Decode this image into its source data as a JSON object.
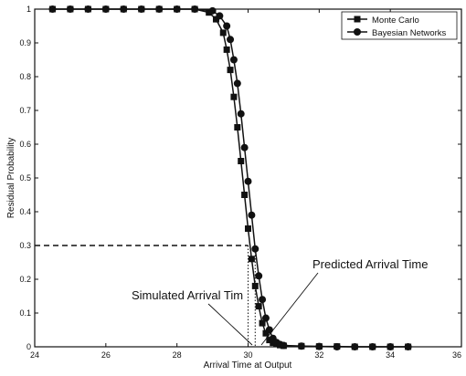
{
  "chart_data": {
    "type": "line",
    "xlabel": "Arrival Time at Output",
    "ylabel": "Residual Probability",
    "xlim": [
      24,
      36
    ],
    "ylim": [
      0,
      1
    ],
    "xticks": [
      "24",
      "26",
      "28",
      "30",
      "32",
      "34",
      "36"
    ],
    "yticks": [
      "0",
      "0.1",
      "0.2",
      "0.3",
      "0.4",
      "0.5",
      "0.6",
      "0.7",
      "0.8",
      "0.9",
      "1"
    ],
    "grid": false,
    "legend_position": "top-right",
    "series": [
      {
        "name": "Monte Carlo",
        "marker": "square",
        "x": [
          24.5,
          25.0,
          25.5,
          26.0,
          26.5,
          27.0,
          27.5,
          28.0,
          28.5,
          28.9,
          29.1,
          29.3,
          29.4,
          29.5,
          29.6,
          29.7,
          29.8,
          29.9,
          30.0,
          30.1,
          30.2,
          30.3,
          30.4,
          30.5,
          30.6,
          30.7,
          30.8,
          30.9,
          31.0,
          31.5,
          32.0,
          32.5,
          33.0,
          33.5,
          34.0,
          34.5
        ],
        "y": [
          1.0,
          1.0,
          1.0,
          1.0,
          1.0,
          1.0,
          1.0,
          1.0,
          1.0,
          0.99,
          0.97,
          0.93,
          0.88,
          0.82,
          0.74,
          0.65,
          0.55,
          0.45,
          0.35,
          0.26,
          0.18,
          0.12,
          0.07,
          0.04,
          0.02,
          0.012,
          0.008,
          0.005,
          0.003,
          0.002,
          0.001,
          0.001,
          0.0,
          0.0,
          0.0,
          0.0
        ]
      },
      {
        "name": "Bayesian Networks",
        "marker": "circle",
        "x": [
          24.5,
          25.0,
          25.5,
          26.0,
          26.5,
          27.0,
          27.5,
          28.0,
          28.5,
          29.0,
          29.2,
          29.4,
          29.5,
          29.6,
          29.7,
          29.8,
          29.9,
          30.0,
          30.1,
          30.2,
          30.3,
          30.4,
          30.5,
          30.6,
          30.7,
          30.8,
          30.9,
          31.0,
          31.5,
          32.0,
          32.5,
          33.0,
          33.5,
          34.0,
          34.5
        ],
        "y": [
          1.0,
          1.0,
          1.0,
          1.0,
          1.0,
          1.0,
          1.0,
          1.0,
          1.0,
          0.995,
          0.98,
          0.95,
          0.91,
          0.85,
          0.78,
          0.69,
          0.59,
          0.49,
          0.39,
          0.29,
          0.21,
          0.14,
          0.085,
          0.05,
          0.025,
          0.013,
          0.007,
          0.004,
          0.002,
          0.001,
          0.0,
          0.0,
          0.0,
          0.0,
          0.0
        ]
      }
    ],
    "annotations": [
      {
        "text": "Predicted Arrival Time"
      },
      {
        "text": "Simulated Arrival Tim"
      }
    ],
    "reference_lines": [
      {
        "style": "dashed",
        "y": 0.3,
        "x_from": 24,
        "x_to": 30.0
      },
      {
        "style": "dotted",
        "x_from": 30.0,
        "x_to": 30.2,
        "y": 0.3
      }
    ]
  }
}
